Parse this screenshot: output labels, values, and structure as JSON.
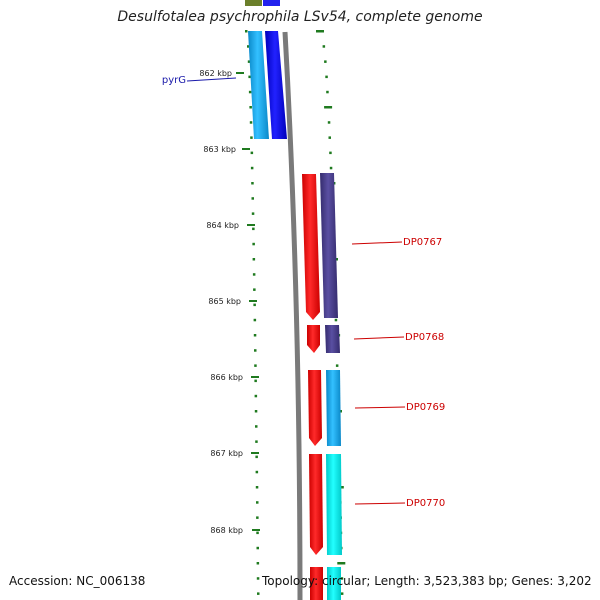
{
  "header": {
    "title": "Desulfotalea psychrophila LSv54, complete genome"
  },
  "footer": {
    "accession": "Accession: NC_006138",
    "summary": "Topology: circular; Length: 3,523,383 bp; Genes: 3,202"
  },
  "ticks": [
    {
      "label": "862 kbp"
    },
    {
      "label": "863 kbp"
    },
    {
      "label": "864 kbp"
    },
    {
      "label": "865 kbp"
    },
    {
      "label": "866 kbp"
    },
    {
      "label": "867 kbp"
    },
    {
      "label": "868 kbp"
    }
  ],
  "gene_labels": [
    {
      "name": "pyrG",
      "color": "#1a1aaa"
    },
    {
      "name": "DP0767",
      "color": "#cc0000"
    },
    {
      "name": "DP0768",
      "color": "#cc0000"
    },
    {
      "name": "DP0769",
      "color": "#cc0000"
    },
    {
      "name": "DP0770",
      "color": "#cc0000"
    }
  ],
  "colors": {
    "backbone": "#7a7a7a",
    "tick_marks": "#1f7a1f",
    "cds": "#ff0000",
    "cog_blue": "#0000ee",
    "cog_sky": "#11aaee",
    "cog_purple": "#4a3f8c",
    "cog_cyan": "#00e5e5",
    "cog_olive": "#6b7f2a"
  }
}
